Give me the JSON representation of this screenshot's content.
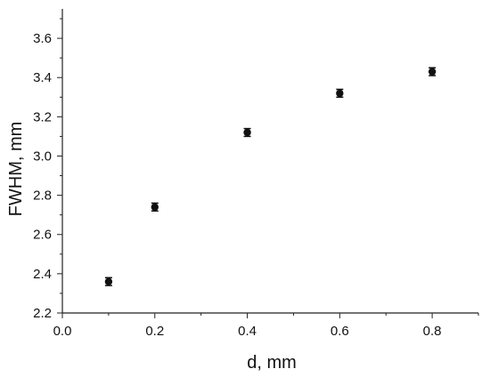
{
  "chart_data": {
    "type": "scatter",
    "title": "",
    "xlabel": "d, mm",
    "ylabel": "FWHM, mm",
    "xlim": [
      0.0,
      0.9
    ],
    "ylim": [
      2.2,
      3.75
    ],
    "x_ticks": [
      0.0,
      0.2,
      0.4,
      0.6,
      0.8
    ],
    "x_tick_labels": [
      "0.0",
      "0.2",
      "0.4",
      "0.6",
      "0.8"
    ],
    "y_ticks": [
      2.2,
      2.4,
      2.6,
      2.8,
      3.0,
      3.2,
      3.4,
      3.6
    ],
    "y_tick_labels": [
      "2.2",
      "2.4",
      "2.6",
      "2.8",
      "3.0",
      "3.2",
      "3.4",
      "3.6"
    ],
    "grid": false,
    "legend": "none",
    "series": [
      {
        "x": [
          0.1,
          0.2,
          0.4,
          0.6,
          0.8
        ],
        "y": [
          2.36,
          2.74,
          3.12,
          3.32,
          3.43
        ],
        "y_error": [
          0.02,
          0.02,
          0.02,
          0.02,
          0.02
        ]
      }
    ],
    "colors": {
      "marker": "#111111",
      "axis": "#222222"
    }
  }
}
